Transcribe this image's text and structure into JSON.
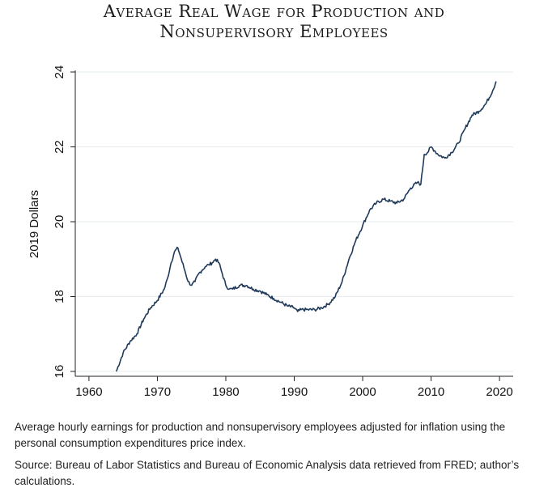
{
  "title_line1": "Average Real Wage for Production and",
  "title_line2": "Nonsupervisory Employees",
  "note": "Average hourly earnings for production and nonsupervisory employees adjusted for inflation using the personal consumption expenditures price index.",
  "source": "Source: Bureau of Labor Statistics and Bureau of Economic Analysis data retrieved from FRED; author’s calculations.",
  "chart_data": {
    "type": "line",
    "title": "Average Real Wage for Production and Nonsupervisory Employees",
    "xlabel": "",
    "ylabel": "2019 Dollars",
    "xlim": [
      1958,
      2022
    ],
    "ylim": [
      16,
      24
    ],
    "xticks": [
      1960,
      1970,
      1980,
      1990,
      2000,
      2010,
      2020
    ],
    "yticks": [
      16,
      18,
      20,
      22,
      24
    ],
    "grid": "horizontal",
    "line_color": "#1f3a5a",
    "series": [
      {
        "name": "Average real wage",
        "x": [
          1964.0,
          1965.0,
          1966.0,
          1967.0,
          1968.0,
          1969.0,
          1970.0,
          1971.0,
          1971.5,
          1972.0,
          1972.5,
          1973.0,
          1973.5,
          1974.0,
          1974.5,
          1975.0,
          1975.5,
          1976.0,
          1976.5,
          1977.0,
          1977.5,
          1978.0,
          1978.5,
          1979.0,
          1979.5,
          1980.0,
          1980.5,
          1981.0,
          1982.0,
          1983.0,
          1984.0,
          1985.0,
          1986.0,
          1987.0,
          1988.0,
          1989.0,
          1990.0,
          1990.5,
          1991.0,
          1992.0,
          1993.0,
          1994.0,
          1995.0,
          1996.0,
          1997.0,
          1998.0,
          1999.0,
          2000.0,
          2001.0,
          2002.0,
          2003.0,
          2004.0,
          2005.0,
          2006.0,
          2007.0,
          2008.0,
          2008.5,
          2009.0,
          2009.5,
          2010.0,
          2010.5,
          2011.0,
          2012.0,
          2013.0,
          2014.0,
          2015.0,
          2016.0,
          2017.0,
          2018.0,
          2019.0,
          2019.5
        ],
        "values": [
          16.0,
          16.5,
          16.8,
          17.0,
          17.4,
          17.7,
          17.9,
          18.2,
          18.5,
          18.9,
          19.2,
          19.3,
          19.0,
          18.7,
          18.4,
          18.3,
          18.4,
          18.6,
          18.7,
          18.8,
          18.85,
          18.9,
          19.0,
          18.9,
          18.6,
          18.3,
          18.2,
          18.2,
          18.3,
          18.3,
          18.2,
          18.15,
          18.05,
          17.95,
          17.85,
          17.75,
          17.7,
          17.6,
          17.65,
          17.65,
          17.65,
          17.7,
          17.8,
          18.0,
          18.4,
          19.0,
          19.5,
          19.9,
          20.3,
          20.5,
          20.6,
          20.55,
          20.5,
          20.6,
          20.9,
          21.05,
          21.0,
          21.8,
          21.85,
          22.0,
          21.9,
          21.8,
          21.7,
          21.85,
          22.1,
          22.5,
          22.85,
          22.95,
          23.15,
          23.5,
          23.75
        ]
      }
    ]
  }
}
